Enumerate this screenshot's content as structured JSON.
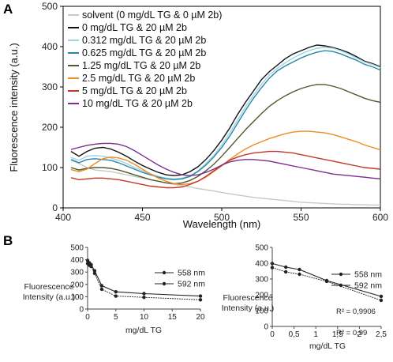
{
  "panel_labels": {
    "a": "A",
    "b": "B"
  },
  "chart_data": [
    {
      "id": "A",
      "type": "line",
      "xlabel": "Wavelength (nm)",
      "ylabel": "Fluorescence intensity (a.u.)",
      "xlim": [
        400,
        600
      ],
      "ylim": [
        0,
        500
      ],
      "xticks": [
        "400",
        "450",
        "500",
        "550",
        "600"
      ],
      "yticks": [
        "0",
        "100",
        "200",
        "300",
        "400",
        "500"
      ],
      "grid": false,
      "legend_position": "top-left",
      "x": [
        405,
        410,
        415,
        420,
        425,
        430,
        435,
        440,
        445,
        450,
        455,
        460,
        465,
        470,
        475,
        480,
        485,
        490,
        495,
        500,
        505,
        510,
        515,
        520,
        525,
        530,
        535,
        540,
        545,
        550,
        555,
        560,
        565,
        570,
        575,
        580,
        585,
        590,
        595,
        600
      ],
      "series": [
        {
          "name": "solvent (0 mg/dL TG & 0 µM 2b)",
          "color": "#c8c8c8",
          "values": [
            118,
            110,
            100,
            94,
            92,
            90,
            86,
            82,
            78,
            74,
            70,
            66,
            62,
            58,
            55,
            52,
            48,
            45,
            42,
            38,
            35,
            32,
            29,
            26,
            24,
            22,
            20,
            18,
            16,
            14,
            13,
            12,
            11,
            10,
            9,
            9,
            8,
            8,
            7,
            7
          ]
        },
        {
          "name": "0 mg/dL TG & 20 µM 2b",
          "color": "#111111",
          "values": [
            140,
            128,
            140,
            148,
            150,
            146,
            138,
            128,
            116,
            105,
            96,
            88,
            82,
            80,
            82,
            90,
            102,
            120,
            142,
            168,
            198,
            232,
            262,
            290,
            318,
            338,
            354,
            370,
            382,
            390,
            398,
            404,
            402,
            398,
            392,
            385,
            375,
            364,
            358,
            350
          ]
        },
        {
          "name": "0.312 mg/dL TG & 20 µM 2b",
          "color": "#9fd3e0",
          "values": [
            125,
            118,
            128,
            130,
            128,
            124,
            118,
            110,
            100,
            92,
            85,
            78,
            74,
            72,
            74,
            80,
            92,
            110,
            130,
            156,
            186,
            218,
            250,
            280,
            306,
            330,
            346,
            360,
            372,
            382,
            390,
            396,
            398,
            396,
            390,
            382,
            372,
            362,
            356,
            348
          ]
        },
        {
          "name": "0.625 mg/dL TG & 20 µM 2b",
          "color": "#2a86a8",
          "values": [
            120,
            112,
            120,
            122,
            120,
            118,
            112,
            104,
            96,
            88,
            82,
            76,
            72,
            70,
            72,
            78,
            90,
            106,
            126,
            150,
            178,
            210,
            242,
            272,
            298,
            322,
            340,
            352,
            362,
            372,
            380,
            386,
            390,
            388,
            382,
            374,
            366,
            356,
            350,
            342
          ]
        },
        {
          "name": "1.25 mg/dL TG & 20 µM 2b",
          "color": "#4d5a2e",
          "values": [
            100,
            94,
            98,
            100,
            100,
            98,
            94,
            88,
            82,
            76,
            70,
            66,
            62,
            60,
            62,
            68,
            78,
            92,
            108,
            128,
            150,
            172,
            194,
            214,
            234,
            252,
            266,
            278,
            288,
            296,
            302,
            306,
            306,
            302,
            296,
            288,
            280,
            272,
            266,
            262
          ]
        },
        {
          "name": "2.5 mg/dL TG & 20 µM 2b",
          "color": "#f08a24",
          "values": [
            95,
            90,
            96,
            110,
            122,
            126,
            124,
            118,
            108,
            96,
            84,
            74,
            66,
            60,
            58,
            60,
            66,
            76,
            90,
            104,
            120,
            134,
            146,
            156,
            164,
            172,
            178,
            184,
            188,
            190,
            190,
            188,
            186,
            182,
            176,
            170,
            164,
            156,
            150,
            144
          ]
        },
        {
          "name": "5 mg/dL TG & 20 µM 2b",
          "color": "#c0392b",
          "values": [
            75,
            70,
            72,
            74,
            74,
            72,
            70,
            66,
            62,
            58,
            54,
            52,
            50,
            50,
            52,
            58,
            66,
            78,
            92,
            106,
            118,
            126,
            132,
            136,
            138,
            140,
            140,
            138,
            136,
            132,
            128,
            124,
            120,
            116,
            112,
            108,
            104,
            100,
            98,
            96
          ]
        },
        {
          "name": "10 mg/dL TG & 20 µM 2b",
          "color": "#7b2f8f",
          "values": [
            145,
            150,
            155,
            158,
            160,
            160,
            158,
            152,
            142,
            130,
            118,
            106,
            96,
            88,
            82,
            80,
            82,
            88,
            96,
            106,
            114,
            118,
            120,
            120,
            118,
            116,
            112,
            108,
            104,
            100,
            96,
            92,
            88,
            84,
            82,
            80,
            78,
            76,
            74,
            72
          ]
        }
      ]
    },
    {
      "id": "B-left",
      "type": "line",
      "xlabel": "mg/dL TG",
      "ylabel": "Fluorescence Intensity (a.u.)",
      "ylabel_lines": [
        "Fluorescence",
        "Intensity (a.u.)"
      ],
      "xlim": [
        0,
        20
      ],
      "ylim": [
        0,
        500
      ],
      "xticks": [
        "0",
        "5",
        "10",
        "15",
        "20"
      ],
      "yticks": [
        "0",
        "100",
        "200",
        "300",
        "400",
        "500"
      ],
      "legend_position": "top-right",
      "x": [
        0,
        0.312,
        0.625,
        1.25,
        2.5,
        5,
        10,
        20
      ],
      "series": [
        {
          "name": "558 nm",
          "color": "#222222",
          "marker": "circle",
          "values": [
            395,
            375,
            360,
            310,
            190,
            140,
            125,
            105
          ]
        },
        {
          "name": "592 nm",
          "color": "#222222",
          "marker": "circle",
          "values": [
            370,
            355,
            345,
            290,
            160,
            105,
            95,
            75
          ]
        }
      ]
    },
    {
      "id": "B-right",
      "type": "line",
      "xlabel": "mg/dL TG",
      "ylabel": "Fluorescence Intensity (a.u.)",
      "ylabel_lines": [
        "Fluorescence",
        "Intensity (a.u.)"
      ],
      "xlim": [
        0,
        2.5
      ],
      "ylim": [
        0,
        500
      ],
      "xticks": [
        "0",
        "0,5",
        "1",
        "1,5",
        "2",
        "2,5"
      ],
      "yticks": [
        "0",
        "100",
        "200",
        "300",
        "400",
        "500"
      ],
      "legend_position": "top-right",
      "annotations": [
        "R² = 0,9906",
        "R² = 0,99"
      ],
      "x": [
        0,
        0.312,
        0.625,
        1.25,
        2.5
      ],
      "series": [
        {
          "name": "558 nm",
          "color": "#222222",
          "marker": "circle",
          "values": [
            398,
            375,
            360,
            290,
            190
          ]
        },
        {
          "name": "592 nm",
          "color": "#222222",
          "marker": "circle",
          "values": [
            372,
            345,
            330,
            285,
            165
          ]
        }
      ]
    }
  ]
}
